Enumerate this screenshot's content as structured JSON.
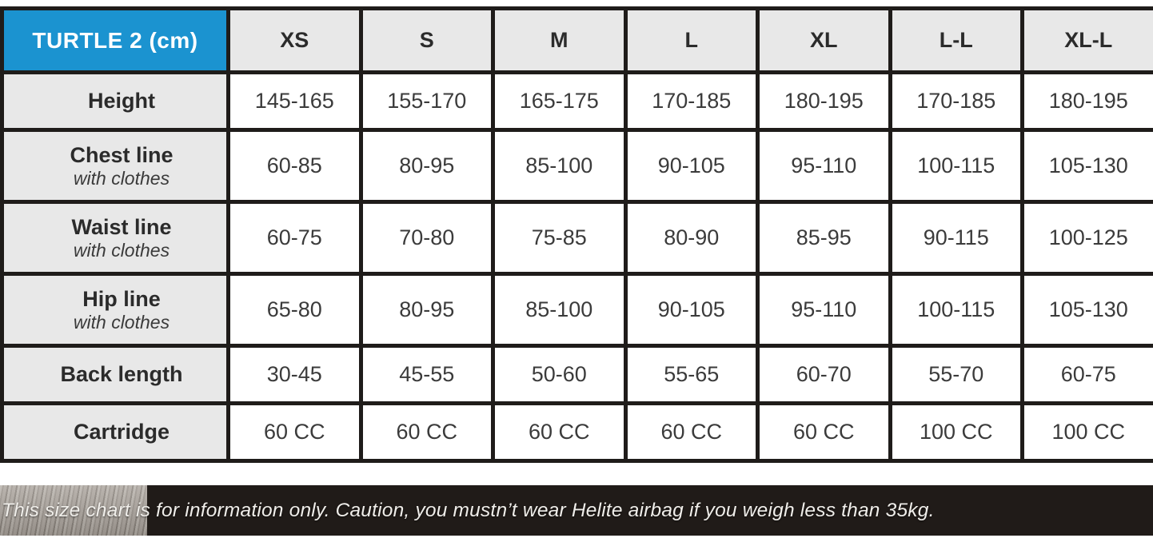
{
  "chart_data": {
    "type": "table",
    "title": "TURTLE 2 (cm)",
    "columns": [
      "XS",
      "S",
      "M",
      "L",
      "XL",
      "L-L",
      "XL-L"
    ],
    "rows": [
      {
        "label": "Height",
        "sublabel": "",
        "values": [
          "145-165",
          "155-170",
          "165-175",
          "170-185",
          "180-195",
          "170-185",
          "180-195"
        ]
      },
      {
        "label": "Chest line",
        "sublabel": "with clothes",
        "values": [
          "60-85",
          "80-95",
          "85-100",
          "90-105",
          "95-110",
          "100-115",
          "105-130"
        ]
      },
      {
        "label": "Waist line",
        "sublabel": "with clothes",
        "values": [
          "60-75",
          "70-80",
          "75-85",
          "80-90",
          "85-95",
          "90-115",
          "100-125"
        ]
      },
      {
        "label": "Hip line",
        "sublabel": "with clothes",
        "values": [
          "65-80",
          "80-95",
          "85-100",
          "90-105",
          "95-110",
          "100-115",
          "105-130"
        ]
      },
      {
        "label": "Back length",
        "sublabel": "",
        "values": [
          "30-45",
          "45-55",
          "50-60",
          "55-65",
          "60-70",
          "55-70",
          "60-75"
        ]
      },
      {
        "label": "Cartridge",
        "sublabel": "",
        "values": [
          "60 CC",
          "60 CC",
          "60 CC",
          "60 CC",
          "60 CC",
          "100 CC",
          "100 CC"
        ]
      }
    ]
  },
  "footer": {
    "note": "This size chart is for information only. Caution, you mustn’t wear Helite airbag if you weigh less than 35kg."
  },
  "colors": {
    "brand_blue": "#1b93d0",
    "header_gray": "#e8e8e8",
    "border_black": "#1f1c1a",
    "footer_bg": "#201b18",
    "footer_text": "#f0eeea",
    "data_text": "#3b3b3b"
  }
}
